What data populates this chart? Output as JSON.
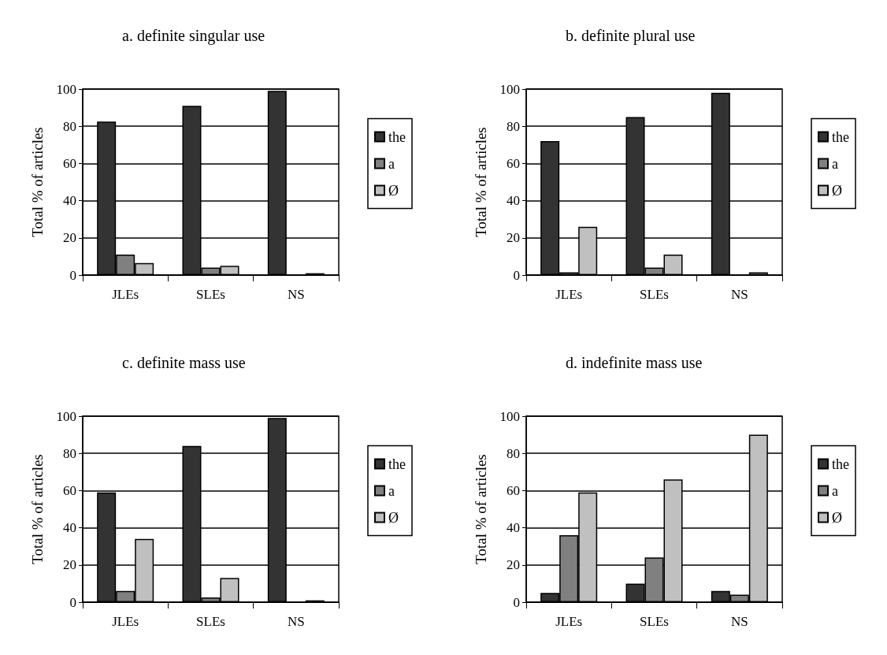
{
  "chart_data": [
    {
      "type": "bar",
      "title": "a. definite singular use",
      "ylabel": "Total % of articles",
      "categories": [
        "JLEs",
        "SLEs",
        "NS"
      ],
      "series": [
        {
          "name": "the",
          "color": "#333333",
          "values": [
            82.5,
            91,
            99
          ]
        },
        {
          "name": "a",
          "color": "#808080",
          "values": [
            11,
            4,
            null
          ]
        },
        {
          "name": "Ø",
          "color": "#c0c0c0",
          "values": [
            6.5,
            5,
            1
          ]
        }
      ],
      "ylim": [
        0,
        100
      ],
      "yticks": [
        0,
        20,
        40,
        60,
        80,
        100
      ],
      "grid": "y",
      "legend": "right"
    },
    {
      "type": "bar",
      "title": "b. definite plural use",
      "ylabel": "Total % of articles",
      "categories": [
        "JLEs",
        "SLEs",
        "NS"
      ],
      "series": [
        {
          "name": "the",
          "color": "#333333",
          "values": [
            72,
            85,
            98
          ]
        },
        {
          "name": "a",
          "color": "#808080",
          "values": [
            1.5,
            4,
            null
          ]
        },
        {
          "name": "Ø",
          "color": "#c0c0c0",
          "values": [
            26,
            11,
            1.5
          ]
        }
      ],
      "ylim": [
        0,
        100
      ],
      "yticks": [
        0,
        20,
        40,
        60,
        80,
        100
      ],
      "grid": "y",
      "legend": "right"
    },
    {
      "type": "bar",
      "title": "c. definite mass use",
      "ylabel": "Total % of articles",
      "categories": [
        "JLEs",
        "SLEs",
        "NS"
      ],
      "series": [
        {
          "name": "the",
          "color": "#333333",
          "values": [
            59,
            84,
            99
          ]
        },
        {
          "name": "a",
          "color": "#808080",
          "values": [
            6,
            2.5,
            null
          ]
        },
        {
          "name": "Ø",
          "color": "#c0c0c0",
          "values": [
            34,
            13,
            1
          ]
        }
      ],
      "ylim": [
        0,
        100
      ],
      "yticks": [
        0,
        20,
        40,
        60,
        80,
        100
      ],
      "grid": "y",
      "legend": "right"
    },
    {
      "type": "bar",
      "title": "d. indefinite mass use",
      "ylabel": "Total % of articles",
      "categories": [
        "JLEs",
        "SLEs",
        "NS"
      ],
      "series": [
        {
          "name": "the",
          "color": "#333333",
          "values": [
            5,
            10,
            6
          ]
        },
        {
          "name": "a",
          "color": "#808080",
          "values": [
            36,
            24,
            4
          ]
        },
        {
          "name": "Ø",
          "color": "#c0c0c0",
          "values": [
            59,
            66,
            90
          ]
        }
      ],
      "ylim": [
        0,
        100
      ],
      "yticks": [
        0,
        20,
        40,
        60,
        80,
        100
      ],
      "grid": "y",
      "legend": "right"
    }
  ]
}
